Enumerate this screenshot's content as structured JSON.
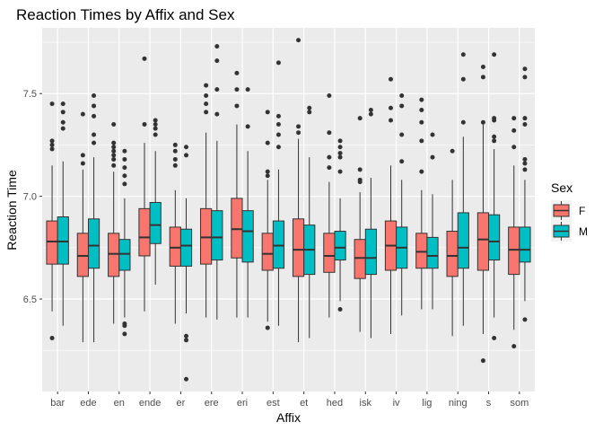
{
  "chart_data": {
    "type": "boxplot",
    "title": "Reaction Times by Affix and Sex",
    "xlabel": "Affix",
    "ylabel": "Reaction Time",
    "ylim": [
      6.05,
      7.82
    ],
    "yticks": [
      6.5,
      7.0,
      7.5
    ],
    "ytick_labels": [
      "6.5",
      "7.0",
      "7.5"
    ],
    "grid": true,
    "legend": {
      "title": "Sex",
      "position": "right"
    },
    "categories": [
      "bar",
      "ede",
      "en",
      "ende",
      "er",
      "ere",
      "eri",
      "est",
      "et",
      "hed",
      "isk",
      "iv",
      "lig",
      "ning",
      "s",
      "som"
    ],
    "series": [
      {
        "name": "F",
        "color": "#F8766D",
        "boxes": [
          {
            "min": 6.44,
            "q1": 6.67,
            "median": 6.78,
            "q3": 6.88,
            "max": 7.15,
            "outliers": [
              7.45,
              7.27,
              7.25,
              7.23,
              6.31
            ]
          },
          {
            "min": 6.29,
            "q1": 6.61,
            "median": 6.71,
            "q3": 6.82,
            "max": 7.13,
            "outliers": [
              7.4,
              7.2,
              7.16
            ]
          },
          {
            "min": 6.38,
            "q1": 6.61,
            "median": 6.72,
            "q3": 6.82,
            "max": 7.12,
            "outliers": [
              7.35,
              7.26,
              7.24,
              7.22,
              7.2,
              7.18,
              7.15
            ]
          },
          {
            "min": 6.44,
            "q1": 6.71,
            "median": 6.8,
            "q3": 6.94,
            "max": 7.26,
            "outliers": [
              7.67,
              7.35
            ]
          },
          {
            "min": 6.38,
            "q1": 6.66,
            "median": 6.75,
            "q3": 6.85,
            "max": 7.03,
            "outliers": [
              7.25,
              7.22,
              7.18,
              7.15
            ]
          },
          {
            "min": 6.41,
            "q1": 6.67,
            "median": 6.8,
            "q3": 6.94,
            "max": 7.31,
            "outliers": [
              7.54,
              7.49,
              7.45,
              7.41
            ]
          },
          {
            "min": 6.41,
            "q1": 6.7,
            "median": 6.84,
            "q3": 6.99,
            "max": 7.35,
            "outliers": [
              7.6,
              7.52,
              7.44
            ]
          },
          {
            "min": 6.39,
            "q1": 6.64,
            "median": 6.72,
            "q3": 6.82,
            "max": 7.08,
            "outliers": [
              7.41,
              7.26,
              7.12,
              7.1,
              6.36
            ]
          },
          {
            "min": 6.29,
            "q1": 6.61,
            "median": 6.74,
            "q3": 6.89,
            "max": 7.28,
            "outliers": [
              7.76,
              7.34,
              7.31
            ]
          },
          {
            "min": 6.41,
            "q1": 6.63,
            "median": 6.71,
            "q3": 6.82,
            "max": 7.07,
            "outliers": [
              7.49,
              7.31,
              7.19,
              7.14
            ]
          },
          {
            "min": 6.34,
            "q1": 6.6,
            "median": 6.7,
            "q3": 6.79,
            "max": 7.02,
            "outliers": [
              7.38,
              7.13,
              7.08,
              7.07
            ]
          },
          {
            "min": 6.33,
            "q1": 6.64,
            "median": 6.76,
            "q3": 6.88,
            "max": 7.15,
            "outliers": [
              7.57,
              7.43,
              7.37
            ]
          },
          {
            "min": 6.45,
            "q1": 6.65,
            "median": 6.73,
            "q3": 6.82,
            "max": 7.03,
            "outliers": [
              7.47,
              7.42,
              7.36,
              7.27,
              7.12
            ]
          },
          {
            "min": 6.32,
            "q1": 6.61,
            "median": 6.71,
            "q3": 6.83,
            "max": 7.08,
            "outliers": [
              7.22
            ]
          },
          {
            "min": 6.33,
            "q1": 6.64,
            "median": 6.79,
            "q3": 6.92,
            "max": 7.35,
            "outliers": [
              7.63,
              7.58,
              7.36,
              6.2
            ]
          },
          {
            "min": 6.35,
            "q1": 6.62,
            "median": 6.74,
            "q3": 6.85,
            "max": 7.15,
            "outliers": [
              7.38,
              7.32,
              7.24,
              6.27
            ]
          }
        ]
      },
      {
        "name": "M",
        "color": "#00BFC4",
        "boxes": [
          {
            "min": 6.37,
            "q1": 6.67,
            "median": 6.78,
            "q3": 6.9,
            "max": 7.17,
            "outliers": [
              7.45,
              7.41,
              7.36,
              7.33
            ]
          },
          {
            "min": 6.29,
            "q1": 6.65,
            "median": 6.76,
            "q3": 6.89,
            "max": 7.19,
            "outliers": [
              7.49,
              7.44,
              7.39,
              7.3,
              7.26
            ]
          },
          {
            "min": 6.41,
            "q1": 6.64,
            "median": 6.72,
            "q3": 6.79,
            "max": 6.99,
            "outliers": [
              7.22,
              7.18,
              7.14,
              7.1,
              7.06,
              6.38,
              6.37,
              6.33
            ]
          },
          {
            "min": 6.57,
            "q1": 6.77,
            "median": 6.86,
            "q3": 6.97,
            "max": 7.22,
            "outliers": [
              7.37,
              7.35,
              7.33,
              7.3
            ]
          },
          {
            "min": 6.43,
            "q1": 6.66,
            "median": 6.76,
            "q3": 6.84,
            "max": 6.99,
            "outliers": [
              7.24,
              7.2,
              6.32,
              6.3,
              6.11
            ]
          },
          {
            "min": 6.4,
            "q1": 6.69,
            "median": 6.8,
            "q3": 6.93,
            "max": 7.27,
            "outliers": [
              7.73,
              7.66,
              7.52,
              7.4
            ]
          },
          {
            "min": 6.41,
            "q1": 6.68,
            "median": 6.83,
            "q3": 6.93,
            "max": 7.22,
            "outliers": [
              7.52,
              7.34
            ]
          },
          {
            "min": 6.37,
            "q1": 6.65,
            "median": 6.76,
            "q3": 6.88,
            "max": 7.13,
            "outliers": [
              7.65,
              7.39,
              7.35,
              7.3,
              7.24
            ]
          },
          {
            "min": 6.31,
            "q1": 6.62,
            "median": 6.74,
            "q3": 6.86,
            "max": 7.19,
            "outliers": [
              7.43,
              7.41
            ]
          },
          {
            "min": 6.49,
            "q1": 6.69,
            "median": 6.75,
            "q3": 6.83,
            "max": 6.99,
            "outliers": [
              7.27,
              7.24,
              7.21,
              7.19,
              7.12,
              6.45
            ]
          },
          {
            "min": 6.31,
            "q1": 6.62,
            "median": 6.7,
            "q3": 6.84,
            "max": 7.09,
            "outliers": [
              7.42,
              7.4
            ]
          },
          {
            "min": 6.42,
            "q1": 6.65,
            "median": 6.75,
            "q3": 6.85,
            "max": 7.08,
            "outliers": [
              7.49,
              7.44,
              7.3,
              7.17
            ]
          },
          {
            "min": 6.45,
            "q1": 6.65,
            "median": 6.71,
            "q3": 6.8,
            "max": 7.01,
            "outliers": [
              7.3,
              7.19
            ]
          },
          {
            "min": 6.37,
            "q1": 6.65,
            "median": 6.75,
            "q3": 6.92,
            "max": 7.29,
            "outliers": [
              7.69,
              7.57,
              7.36
            ]
          },
          {
            "min": 6.41,
            "q1": 6.69,
            "median": 6.78,
            "q3": 6.91,
            "max": 7.23,
            "outliers": [
              7.69,
              7.38,
              7.37,
              7.29,
              7.27,
              6.31
            ]
          },
          {
            "min": 6.49,
            "q1": 6.68,
            "median": 6.74,
            "q3": 6.85,
            "max": 7.08,
            "outliers": [
              7.62,
              7.58,
              7.38,
              7.35,
              7.18,
              7.16,
              7.13,
              6.4
            ]
          }
        ]
      }
    ]
  }
}
